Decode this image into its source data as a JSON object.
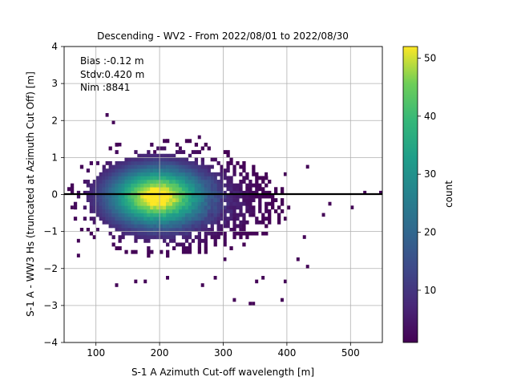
{
  "chart_data": {
    "type": "heatmap",
    "title": "Descending - WV2 - From 2022/08/01 to 2022/08/30",
    "xlabel": "S-1 A Azimuth Cut-off wavelength [m]",
    "ylabel": "S-1 A - WW3 Hs (truncated at Azimuth Cut Off) [m]",
    "xlim": [
      50,
      550
    ],
    "ylim": [
      -4,
      4
    ],
    "xticks": [
      100,
      200,
      300,
      400,
      500
    ],
    "yticks": [
      -4,
      -3,
      -2,
      -1,
      0,
      1,
      2,
      3,
      4
    ],
    "grid": true,
    "reference_line_y": 0,
    "annotations": [
      "Bias :-0.12 m",
      "Stdv:0.420 m",
      "Nim :8841"
    ],
    "colorbar": {
      "label": "count",
      "range": [
        1,
        52
      ],
      "ticks": [
        10,
        20,
        30,
        40,
        50
      ],
      "colormap": "viridis"
    },
    "density_peak": {
      "x": 190,
      "y": -0.05,
      "count": 52
    },
    "core_extent": {
      "x": [
        95,
        400
      ],
      "y": [
        -1.6,
        0.9
      ]
    },
    "outliers": [
      {
        "x": 115,
        "y": 2.15
      },
      {
        "x": 127,
        "y": 1.95
      },
      {
        "x": 135,
        "y": 1.35
      },
      {
        "x": 190,
        "y": 1.15
      },
      {
        "x": 212,
        "y": 1.45
      },
      {
        "x": 232,
        "y": 1.3
      },
      {
        "x": 262,
        "y": 1.6
      },
      {
        "x": 430,
        "y": 0.7
      },
      {
        "x": 395,
        "y": 0.6
      },
      {
        "x": 365,
        "y": 0.6
      },
      {
        "x": 520,
        "y": 0.05
      },
      {
        "x": 545,
        "y": 0.02
      },
      {
        "x": 465,
        "y": -0.3
      },
      {
        "x": 455,
        "y": -0.6
      },
      {
        "x": 425,
        "y": -1.15
      },
      {
        "x": 415,
        "y": -1.8
      },
      {
        "x": 430,
        "y": -2.0
      },
      {
        "x": 395,
        "y": -2.35
      },
      {
        "x": 360,
        "y": -2.25
      },
      {
        "x": 350,
        "y": -2.35
      },
      {
        "x": 318,
        "y": -2.85
      },
      {
        "x": 392,
        "y": -2.9
      },
      {
        "x": 345,
        "y": -2.95
      },
      {
        "x": 340,
        "y": -2.95
      },
      {
        "x": 175,
        "y": -2.35
      },
      {
        "x": 160,
        "y": -2.35
      },
      {
        "x": 133,
        "y": -2.45
      },
      {
        "x": 70,
        "y": -1.65
      },
      {
        "x": 63,
        "y": -0.4
      },
      {
        "x": 72,
        "y": -1.2
      },
      {
        "x": 210,
        "y": -2.3
      },
      {
        "x": 268,
        "y": -2.45
      },
      {
        "x": 285,
        "y": -2.3
      },
      {
        "x": 300,
        "y": -1.8
      },
      {
        "x": 502,
        "y": -0.35
      }
    ]
  }
}
